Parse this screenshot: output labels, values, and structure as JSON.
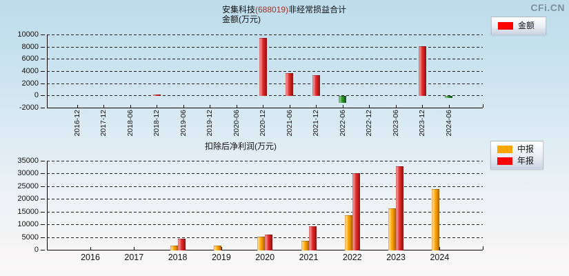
{
  "watermark": "CFi.CN",
  "header": {
    "company": "安集科技",
    "code": "(688019)",
    "metric": "非经常损益合计",
    "unit_line": "金额(万元)"
  },
  "bottom_header": {
    "title": "扣除后净利润(万元)"
  },
  "legend_top": {
    "items": [
      {
        "label": "金额",
        "color": "#ff0000"
      }
    ]
  },
  "legend_bottom": {
    "items": [
      {
        "label": "中报",
        "color": "#ffa500"
      },
      {
        "label": "年报",
        "color": "#ff0000"
      }
    ]
  },
  "colors": {
    "positive_bar": "#e03030",
    "negative_bar": "#2f9e2f",
    "midyear_bar": "#ffa500",
    "annual_bar": "#ff0000"
  },
  "chart_data": [
    {
      "type": "bar",
      "title": "安集科技(688019)非经常损益合计",
      "ylabel": "金额(万元)",
      "categories": [
        "2016-12",
        "2017-12",
        "2018-06",
        "2018-12",
        "2019-06",
        "2019-12",
        "2020-06",
        "2020-12",
        "2021-06",
        "2021-12",
        "2022-06",
        "2022-12",
        "2023-06",
        "2023-12",
        "2024-06"
      ],
      "series": [
        {
          "name": "金额",
          "values": [
            null,
            null,
            null,
            150,
            null,
            null,
            null,
            9400,
            3700,
            3300,
            -1000,
            null,
            null,
            8100,
            -80
          ]
        }
      ],
      "ylim": [
        -2000,
        10000
      ],
      "ytick_step": 2000,
      "grid": "dashed",
      "negative_color_rule": "values below zero drawn green",
      "legend_position": "top-right"
    },
    {
      "type": "bar",
      "title": "扣除后净利润(万元)",
      "categories": [
        "2016",
        "2017",
        "2018",
        "2019",
        "2020",
        "2021",
        "2022",
        "2023",
        "2024"
      ],
      "series": [
        {
          "name": "中报",
          "values": [
            null,
            null,
            1500,
            1600,
            5100,
            3400,
            13500,
            16200,
            23900
          ]
        },
        {
          "name": "年报",
          "values": [
            null,
            null,
            4400,
            null,
            6100,
            9200,
            30100,
            32900,
            null
          ]
        }
      ],
      "ylim": [
        0,
        35000
      ],
      "ytick_step": 5000,
      "grid": "dashed",
      "legend_position": "right"
    }
  ]
}
